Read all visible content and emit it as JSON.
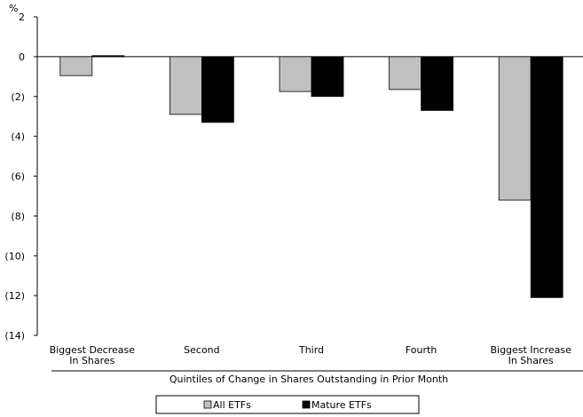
{
  "chart_data": {
    "type": "bar",
    "unit_label": "%",
    "categories": [
      [
        "Biggest Decrease",
        "In Shares"
      ],
      [
        "Second"
      ],
      [
        "Third"
      ],
      [
        "Fourth"
      ],
      [
        "Biggest Increase",
        "In Shares"
      ]
    ],
    "series": [
      {
        "name": "All ETFs",
        "color": "#c0c0c0",
        "values": [
          -0.95,
          -2.9,
          -1.75,
          -1.65,
          -7.2
        ]
      },
      {
        "name": "Mature ETFs",
        "color": "#000000",
        "values": [
          0.05,
          -3.3,
          -2.0,
          -2.7,
          -12.1
        ]
      }
    ],
    "ylim": [
      -14,
      2
    ],
    "yticks": [
      2,
      0,
      -2,
      -4,
      -6,
      -8,
      -10,
      -12,
      -14
    ],
    "ytick_labels": [
      "2",
      "0",
      "(2)",
      "(4)",
      "(6)",
      "(8)",
      "(10)",
      "(12)",
      "(14)"
    ],
    "xlabel": "Quintiles of Change in Shares Outstanding in Prior Month",
    "title": "",
    "grid": false,
    "legend_position": "bottom-center"
  }
}
